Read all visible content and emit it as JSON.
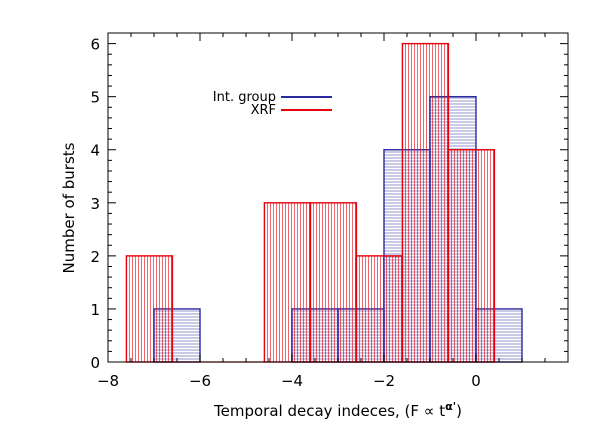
{
  "chart_data": {
    "type": "histogram",
    "xlabel": "Temporal decay indeces, (F ∝ t",
    "xlabel_exponent": "α'",
    "xlabel_close": ")",
    "ylabel": "Number of bursts",
    "xlim": [
      -8,
      2
    ],
    "ylim": [
      0,
      6.2
    ],
    "xticks": [
      "−8",
      "−6",
      "−4",
      "−2",
      "0"
    ],
    "yticks": [
      "0",
      "1",
      "2",
      "3",
      "4",
      "5",
      "6"
    ],
    "series": [
      {
        "name": "Int. group",
        "color": "#2a2aa0",
        "hatch": "horizontal",
        "bins": [
          {
            "x0": -7.0,
            "x1": -6.0,
            "count": 1
          },
          {
            "x0": -4.0,
            "x1": -3.0,
            "count": 1
          },
          {
            "x0": -3.0,
            "x1": -2.0,
            "count": 1
          },
          {
            "x0": -2.0,
            "x1": -1.0,
            "count": 4
          },
          {
            "x0": -1.0,
            "x1": 0.0,
            "count": 5
          },
          {
            "x0": 0.0,
            "x1": 1.0,
            "count": 1
          }
        ]
      },
      {
        "name": "XRF",
        "color": "#e8000b",
        "hatch": "vertical",
        "bins": [
          {
            "x0": -7.6,
            "x1": -6.6,
            "count": 2
          },
          {
            "x0": -6.6,
            "x1": -5.6,
            "count": 0
          },
          {
            "x0": -5.6,
            "x1": -4.6,
            "count": 0
          },
          {
            "x0": -4.6,
            "x1": -3.6,
            "count": 3
          },
          {
            "x0": -3.6,
            "x1": -2.6,
            "count": 3
          },
          {
            "x0": -2.6,
            "x1": -1.6,
            "count": 2
          },
          {
            "x0": -1.6,
            "x1": -0.6,
            "count": 6
          },
          {
            "x0": -0.6,
            "x1": 0.4,
            "count": 4
          }
        ]
      }
    ],
    "legend": [
      {
        "label": "Int. group",
        "color": "#2a2aa0"
      },
      {
        "label": "XRF",
        "color": "#e8000b"
      }
    ]
  }
}
